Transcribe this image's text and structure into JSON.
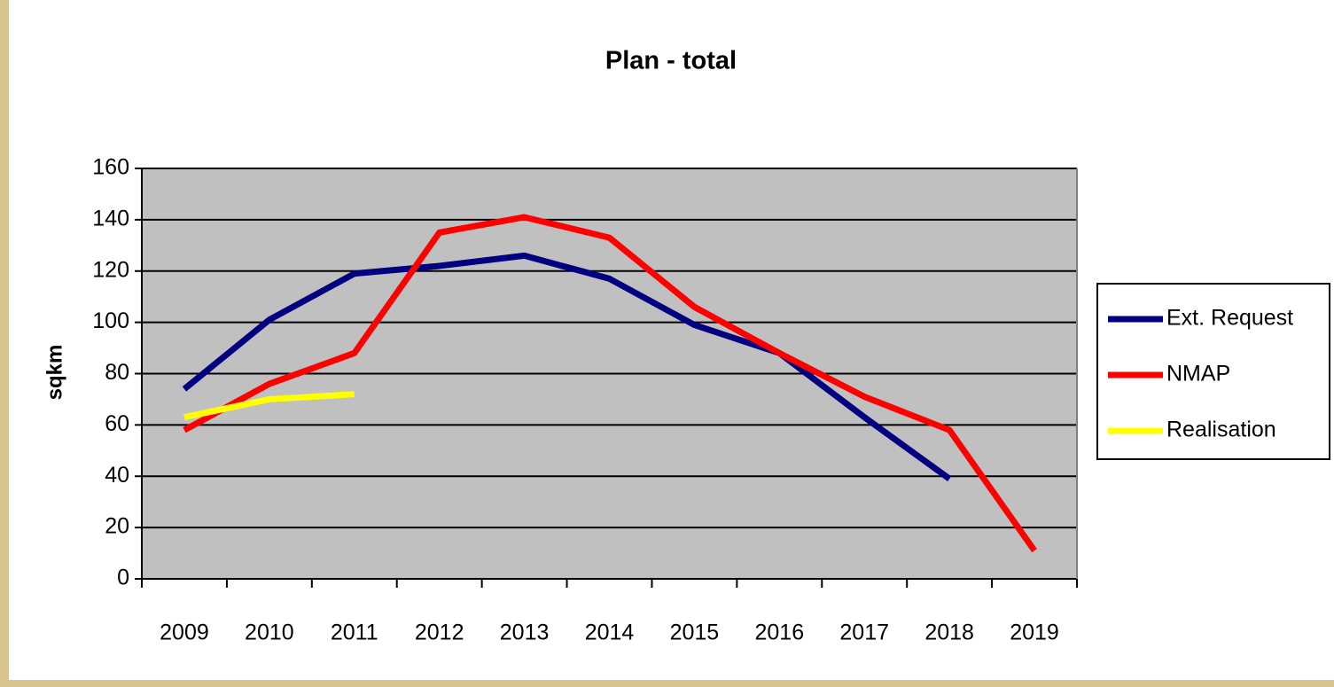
{
  "chart_data": {
    "type": "line",
    "title": "Plan - total",
    "y_label": "sqkm",
    "categories": [
      "2009",
      "2010",
      "2011",
      "2012",
      "2013",
      "2014",
      "2015",
      "2016",
      "2017",
      "2018",
      "2019"
    ],
    "series": [
      {
        "name": "Ext. Request",
        "color": "#000080",
        "values": [
          74,
          101,
          119,
          122,
          126,
          117,
          99,
          88,
          63,
          39,
          null
        ]
      },
      {
        "name": "NMAP",
        "color": "#ff0000",
        "values": [
          58,
          76,
          88,
          135,
          141,
          133,
          106,
          88,
          71,
          58,
          11
        ]
      },
      {
        "name": "Realisation",
        "color": "#ffff00",
        "values": [
          63,
          70,
          72,
          null,
          null,
          null,
          null,
          null,
          null,
          null,
          null
        ]
      }
    ],
    "ylim": [
      0,
      160
    ],
    "yticks": [
      0,
      20,
      40,
      60,
      80,
      100,
      120,
      140,
      160
    ],
    "grid": true,
    "legend": "right"
  }
}
